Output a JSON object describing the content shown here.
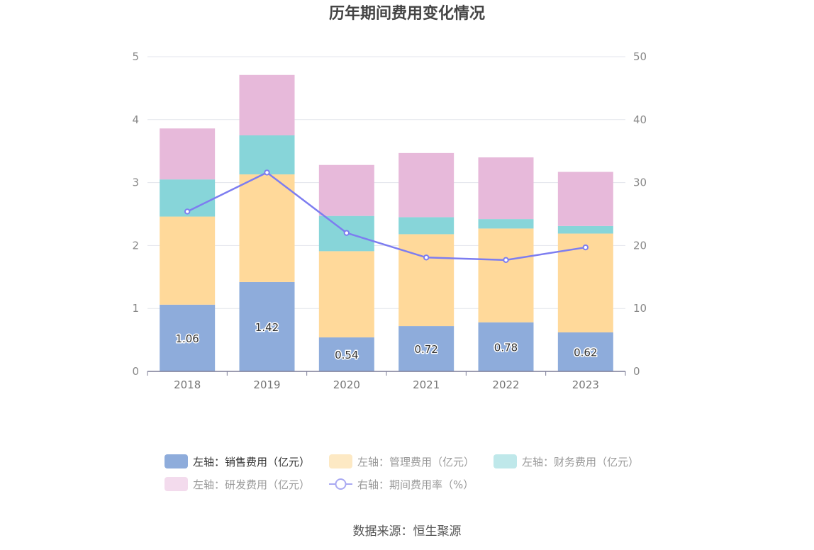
{
  "chart_data": {
    "type": "bar",
    "stacked": true,
    "title": "历年期间费用变化情况",
    "categories": [
      "2018",
      "2019",
      "2020",
      "2021",
      "2022",
      "2023"
    ],
    "y_left": {
      "ylim": [
        0,
        5
      ],
      "ticks": [
        "0",
        "1",
        "2",
        "3",
        "4",
        "5"
      ]
    },
    "y_right": {
      "ylim": [
        0,
        50
      ],
      "ticks": [
        "0",
        "10",
        "20",
        "30",
        "40",
        "50"
      ]
    },
    "series": [
      {
        "name": "左轴：销售费用（亿元）",
        "axis": "left",
        "type": "bar",
        "color": "#8eacdb",
        "values": [
          1.06,
          1.42,
          0.54,
          0.72,
          0.78,
          0.62
        ],
        "labels": [
          "1.06",
          "1.42",
          "0.54",
          "0.72",
          "0.78",
          "0.62"
        ]
      },
      {
        "name": "左轴：管理费用（亿元）",
        "axis": "left",
        "type": "bar",
        "color": "#ffd99a",
        "values": [
          1.4,
          1.71,
          1.37,
          1.46,
          1.49,
          1.57
        ]
      },
      {
        "name": "左轴：财务费用（亿元）",
        "axis": "left",
        "type": "bar",
        "color": "#87d5d9",
        "values": [
          0.59,
          0.62,
          0.56,
          0.27,
          0.15,
          0.12
        ]
      },
      {
        "name": "左轴：研发费用（亿元）",
        "axis": "left",
        "type": "bar",
        "color": "#e7b9da",
        "values": [
          0.81,
          0.96,
          0.81,
          1.02,
          0.98,
          0.86
        ]
      },
      {
        "name": "右轴：期间费用率（%）",
        "axis": "right",
        "type": "line",
        "color": "#7d7df0",
        "values": [
          25.4,
          31.6,
          22.0,
          18.1,
          17.7,
          19.7
        ]
      }
    ],
    "legend_position": "bottom",
    "grid": true,
    "source": "数据来源：恒生聚源"
  }
}
